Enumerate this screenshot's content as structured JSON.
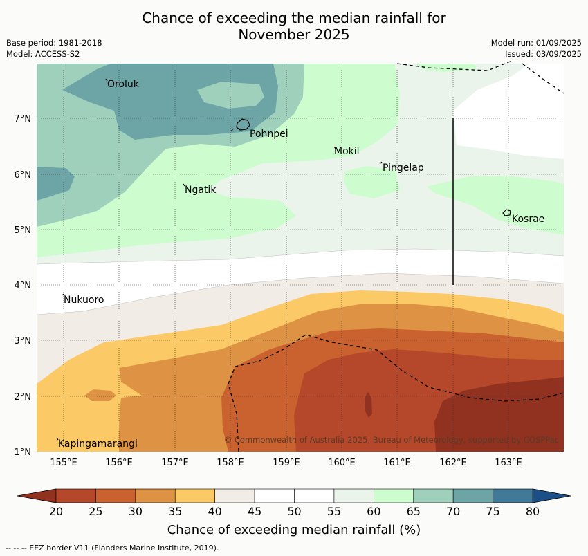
{
  "header": {
    "title_line1": "Chance of exceeding the median rainfall for",
    "title_line2": "November 2025",
    "base_period": "Base period: 1981-2018",
    "model": "Model: ACCESS-S2",
    "model_run": "Model run: 01/09/2025",
    "issued": "Issued: 03/09/2025"
  },
  "map": {
    "lat_labels": [
      "1°N",
      "2°N",
      "3°N",
      "4°N",
      "5°N",
      "6°N",
      "7°N"
    ],
    "lon_labels": [
      "155°E",
      "156°E",
      "157°E",
      "158°E",
      "159°E",
      "160°E",
      "161°E",
      "162°E",
      "163°E"
    ],
    "places": [
      {
        "name": "Oroluk"
      },
      {
        "name": "Pohnpei"
      },
      {
        "name": "Mokil"
      },
      {
        "name": "Pingelap"
      },
      {
        "name": "Ngatik"
      },
      {
        "name": "Kosrae"
      },
      {
        "name": "Nukuoro"
      },
      {
        "name": "Kapingamarangi"
      }
    ],
    "copyright": "© Commonwealth of Australia 2025, Bureau of Meteorology, supported by COSPPac"
  },
  "colorbar": {
    "ticks": [
      "20",
      "25",
      "30",
      "35",
      "40",
      "45",
      "50",
      "55",
      "60",
      "65",
      "70",
      "75",
      "80"
    ],
    "colors": [
      "#b5482a",
      "#c9622f",
      "#de9344",
      "#fbc965",
      "#f1ece6",
      "#ffffff",
      "#ffffff",
      "#ebf4ea",
      "#cdfdce",
      "#9ed0bb",
      "#6da5a7",
      "#417a98"
    ],
    "under_color": "#913220",
    "over_color": "#1c4f86",
    "label": "Chance of exceeding median rainfall (%)"
  },
  "footer": {
    "eez_note": "--  --  -- EEZ border V11 (Flanders Marine Institute, 2019)."
  }
}
